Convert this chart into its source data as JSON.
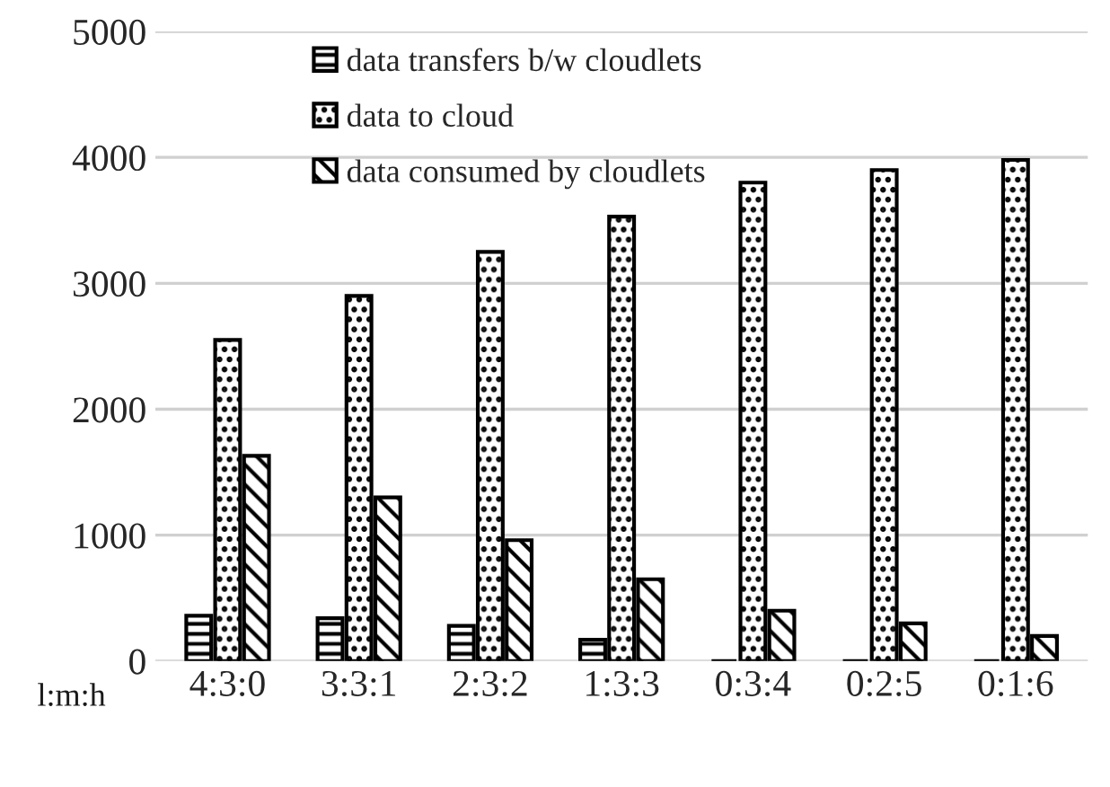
{
  "chart_data": {
    "type": "bar",
    "xlabel": "l:m:h",
    "categories": [
      "4:3:0",
      "3:3:1",
      "2:3:2",
      "1:3:3",
      "0:3:4",
      "0:2:5",
      "0:1:6"
    ],
    "series": [
      {
        "name": "data transfers b/w cloudlets",
        "color": "#000000",
        "values": [
          360,
          340,
          280,
          170,
          0,
          0,
          0
        ]
      },
      {
        "name": "data to cloud",
        "color": "#000000",
        "values": [
          2550,
          2900,
          3250,
          3530,
          3800,
          3900,
          3980
        ]
      },
      {
        "name": "data consumed by cloudlets",
        "color": "#000000",
        "values": [
          1630,
          1300,
          960,
          650,
          400,
          300,
          200
        ]
      }
    ],
    "ylim": [
      0,
      5000
    ],
    "yticks": [
      0,
      1000,
      2000,
      3000,
      4000,
      5000
    ],
    "grid": "y",
    "legend": "top"
  }
}
